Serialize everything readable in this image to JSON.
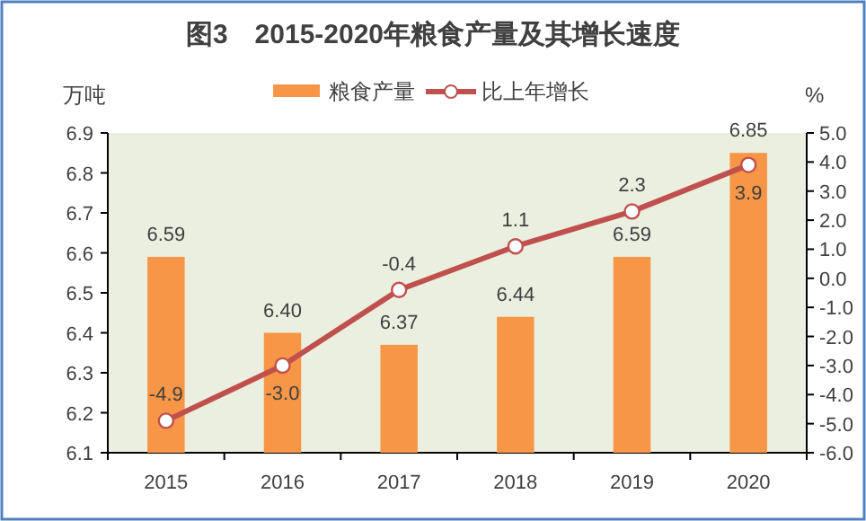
{
  "chart_data": {
    "type": "bar",
    "title": "图3　2015-2020年粮食产量及其增长速度",
    "ylabel": "万吨",
    "y2label": "%",
    "categories": [
      "2015",
      "2016",
      "2017",
      "2018",
      "2019",
      "2020"
    ],
    "series": [
      {
        "name": "粮食产量",
        "color": "#f79646",
        "values": [
          6.59,
          6.4,
          6.37,
          6.44,
          6.59,
          6.85
        ],
        "value_labels": [
          "6.59",
          "6.40",
          "6.37",
          "6.44",
          "6.59",
          "6.85"
        ]
      },
      {
        "name": "比上年增长",
        "type": "line",
        "axis": "y2",
        "color": "#c0504d",
        "marker": "circle",
        "values": [
          -4.9,
          -3.0,
          -0.4,
          1.1,
          2.3,
          3.9
        ],
        "value_labels": [
          "-4.9",
          "-3.0",
          "-0.4",
          "1.1",
          "2.3",
          "3.9"
        ]
      }
    ],
    "ylim": [
      6.1,
      6.9
    ],
    "yticks": [
      6.1,
      6.2,
      6.3,
      6.4,
      6.5,
      6.6,
      6.7,
      6.8,
      6.9
    ],
    "y2lim": [
      -6,
      5
    ],
    "y2ticks": [
      {
        "value": -6,
        "label": "-6.0"
      },
      {
        "value": -5,
        "label": "-5.0"
      },
      {
        "value": -4,
        "label": "-4.0"
      },
      {
        "value": -3,
        "label": "-3.0"
      },
      {
        "value": -2,
        "label": "-2.0"
      },
      {
        "value": -1,
        "label": "-1.0"
      },
      {
        "value": 0,
        "label": "0.0"
      },
      {
        "value": 1,
        "label": "1.0"
      },
      {
        "value": 2,
        "label": "2.0"
      },
      {
        "value": 3,
        "label": "3.0"
      },
      {
        "value": 4,
        "label": "4.0"
      },
      {
        "value": 5,
        "label": "5.0"
      }
    ],
    "legend": "top",
    "grid": false
  }
}
